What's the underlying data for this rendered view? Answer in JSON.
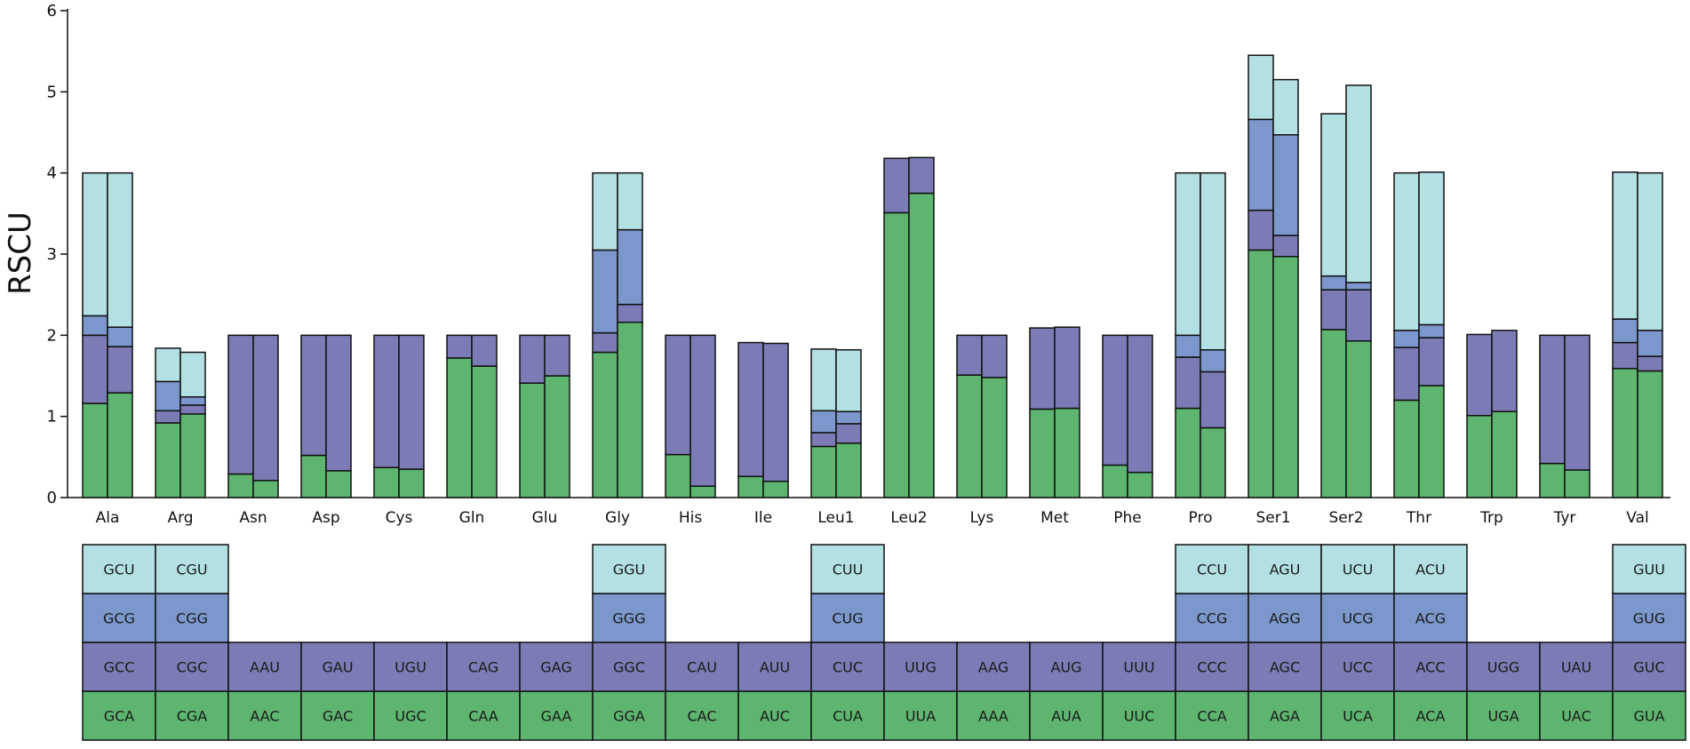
{
  "chart_data": {
    "type": "bar",
    "subtype": "stacked",
    "title": "",
    "xlabel": "",
    "ylabel": "RSCU",
    "ylim": [
      0,
      6
    ],
    "yticks": [
      0,
      1,
      2,
      3,
      4,
      5,
      6
    ],
    "grid": false,
    "categories": [
      "Ala",
      "Arg",
      "Asn",
      "Asp",
      "Cys",
      "Gln",
      "Glu",
      "Gly",
      "His",
      "Ile",
      "Leu1",
      "Leu2",
      "Lys",
      "Met",
      "Phe",
      "Pro",
      "Ser1",
      "Ser2",
      "Thr",
      "Trp",
      "Tyr",
      "Val"
    ],
    "bars_per_category": 2,
    "layer_colors": [
      "#5db56f",
      "#7b7bb5",
      "#7b97cc",
      "#b3e0e3"
    ],
    "bar_stacks": [
      [
        [
          1.16,
          0.84,
          0.24,
          1.76
        ],
        [
          1.29,
          0.57,
          0.24,
          1.9
        ]
      ],
      [
        [
          0.92,
          0.15,
          0.36,
          0.41
        ],
        [
          1.03,
          0.11,
          0.1,
          0.55
        ]
      ],
      [
        [
          0.29,
          1.71
        ],
        [
          0.21,
          1.79
        ]
      ],
      [
        [
          0.52,
          1.48
        ],
        [
          0.33,
          1.67
        ]
      ],
      [
        [
          0.37,
          1.63
        ],
        [
          0.35,
          1.65
        ]
      ],
      [
        [
          1.72,
          0.28
        ],
        [
          1.62,
          0.38
        ]
      ],
      [
        [
          1.41,
          0.59
        ],
        [
          1.5,
          0.5
        ]
      ],
      [
        [
          1.79,
          0.24,
          1.02,
          0.95
        ],
        [
          2.16,
          0.22,
          0.92,
          0.7
        ]
      ],
      [
        [
          0.53,
          1.47
        ],
        [
          0.14,
          1.86
        ]
      ],
      [
        [
          0.26,
          1.65
        ],
        [
          0.2,
          1.7
        ]
      ],
      [
        [
          0.63,
          0.17,
          0.27,
          0.76
        ],
        [
          0.67,
          0.24,
          0.15,
          0.76
        ]
      ],
      [
        [
          3.51,
          0.67
        ],
        [
          3.75,
          0.44
        ]
      ],
      [
        [
          1.51,
          0.49
        ],
        [
          1.48,
          0.52
        ]
      ],
      [
        [
          1.09,
          1.0
        ],
        [
          1.1,
          1.0
        ]
      ],
      [
        [
          0.4,
          1.6
        ],
        [
          0.31,
          1.69
        ]
      ],
      [
        [
          1.1,
          0.63,
          0.27,
          2.0
        ],
        [
          0.86,
          0.69,
          0.27,
          2.18
        ]
      ],
      [
        [
          3.05,
          0.49,
          1.12,
          0.79
        ],
        [
          2.97,
          0.26,
          1.24,
          0.68
        ]
      ],
      [
        [
          2.07,
          0.49,
          0.17,
          2.0
        ],
        [
          1.93,
          0.63,
          0.09,
          2.43
        ]
      ],
      [
        [
          1.2,
          0.65,
          0.21,
          1.94
        ],
        [
          1.38,
          0.59,
          0.16,
          1.88
        ]
      ],
      [
        [
          1.01,
          1.0
        ],
        [
          1.06,
          1.0
        ]
      ],
      [
        [
          0.42,
          1.58
        ],
        [
          0.34,
          1.66
        ]
      ],
      [
        [
          1.59,
          0.32,
          0.29,
          1.81
        ],
        [
          1.56,
          0.18,
          0.32,
          1.94
        ]
      ]
    ],
    "codon_table": [
      [
        "GCA",
        "GCC",
        "GCG",
        "GCU"
      ],
      [
        "CGA",
        "CGC",
        "CGG",
        "CGU"
      ],
      [
        "AAC",
        "AAU"
      ],
      [
        "GAC",
        "GAU"
      ],
      [
        "UGC",
        "UGU"
      ],
      [
        "CAA",
        "CAG"
      ],
      [
        "GAA",
        "GAG"
      ],
      [
        "GGA",
        "GGC",
        "GGG",
        "GGU"
      ],
      [
        "CAC",
        "CAU"
      ],
      [
        "AUC",
        "AUU"
      ],
      [
        "CUA",
        "CUC",
        "CUG",
        "CUU"
      ],
      [
        "UUA",
        "UUG"
      ],
      [
        "AAA",
        "AAG"
      ],
      [
        "AUA",
        "AUG"
      ],
      [
        "UUC",
        "UUU"
      ],
      [
        "CCA",
        "CCC",
        "CCG",
        "CCU"
      ],
      [
        "AGA",
        "AGC",
        "AGG",
        "AGU"
      ],
      [
        "UCA",
        "UCC",
        "UCG",
        "UCU"
      ],
      [
        "ACA",
        "ACC",
        "ACG",
        "ACU"
      ],
      [
        "UGA",
        "UGG"
      ],
      [
        "UAC",
        "UAU"
      ],
      [
        "GUA",
        "GUC",
        "GUG",
        "GUU"
      ]
    ]
  }
}
